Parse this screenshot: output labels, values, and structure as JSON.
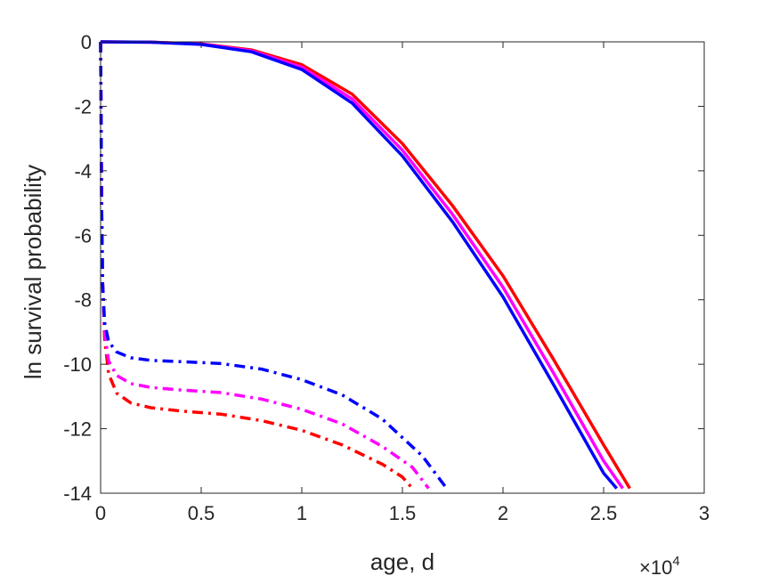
{
  "chart_data": {
    "type": "line",
    "xlabel": "age, d",
    "ylabel": "ln survival probability",
    "x_exponent_label": "×10",
    "x_exponent_power": "4",
    "x_scale": 10000,
    "xlim": [
      0,
      30000
    ],
    "ylim": [
      -14,
      0
    ],
    "xticks": [
      0,
      5000,
      10000,
      15000,
      20000,
      25000,
      30000
    ],
    "xtick_labels": [
      "0",
      "0.5",
      "1",
      "1.5",
      "2",
      "2.5",
      "3"
    ],
    "yticks": [
      0,
      -2,
      -4,
      -6,
      -8,
      -10,
      -12,
      -14
    ],
    "ytick_labels": [
      "0",
      "-2",
      "-4",
      "-6",
      "-8",
      "-10",
      "-12",
      "-14"
    ],
    "grid": false,
    "series": [
      {
        "color": "#ff0000",
        "style": "solid",
        "x": [
          0,
          2500,
          5000,
          7500,
          10000,
          12500,
          15000,
          17500,
          20000,
          22500,
          25000,
          26300
        ],
        "y": [
          0,
          -0.01,
          -0.06,
          -0.25,
          -0.71,
          -1.62,
          -3.16,
          -5.09,
          -7.26,
          -9.84,
          -12.5,
          -13.85
        ]
      },
      {
        "color": "#ff00ff",
        "style": "solid",
        "x": [
          0,
          2500,
          5000,
          7500,
          10000,
          12500,
          15000,
          17500,
          20000,
          22500,
          25000,
          25950
        ],
        "y": [
          0,
          -0.01,
          -0.07,
          -0.28,
          -0.79,
          -1.77,
          -3.36,
          -5.36,
          -7.61,
          -10.26,
          -13.0,
          -13.85
        ]
      },
      {
        "color": "#0000ff",
        "style": "solid",
        "x": [
          0,
          2500,
          5000,
          7500,
          10000,
          12500,
          15000,
          17500,
          20000,
          22500,
          25000,
          25650
        ],
        "y": [
          0,
          -0.01,
          -0.08,
          -0.31,
          -0.86,
          -1.9,
          -3.54,
          -5.59,
          -7.91,
          -10.62,
          -13.38,
          -13.85
        ]
      },
      {
        "color": "#ff0000",
        "style": "dashdot",
        "x": [
          0,
          20,
          50,
          100,
          200,
          400,
          800,
          1500,
          2500,
          4000,
          6000,
          8000,
          10000,
          12000,
          14000,
          15000,
          15500
        ],
        "y": [
          0,
          -2,
          -5,
          -7.5,
          -9.2,
          -10.3,
          -10.9,
          -11.2,
          -11.35,
          -11.45,
          -11.55,
          -11.75,
          -12.05,
          -12.5,
          -13.1,
          -13.5,
          -13.85
        ]
      },
      {
        "color": "#ff00ff",
        "style": "dashdot",
        "x": [
          0,
          20,
          50,
          100,
          200,
          400,
          800,
          1500,
          2500,
          4000,
          6000,
          8000,
          10000,
          12000,
          14000,
          15500,
          16300
        ],
        "y": [
          0,
          -2,
          -5,
          -7.5,
          -9,
          -9.9,
          -10.35,
          -10.6,
          -10.72,
          -10.8,
          -10.88,
          -11.08,
          -11.4,
          -11.85,
          -12.55,
          -13.2,
          -13.85
        ]
      },
      {
        "color": "#0000ff",
        "style": "dashdot",
        "x": [
          0,
          20,
          50,
          100,
          200,
          400,
          800,
          1500,
          2500,
          4000,
          6000,
          8000,
          10000,
          12000,
          14000,
          16000,
          17200
        ],
        "y": [
          0,
          -2,
          -5,
          -7.5,
          -8.7,
          -9.3,
          -9.62,
          -9.8,
          -9.88,
          -9.92,
          -9.98,
          -10.15,
          -10.48,
          -10.95,
          -11.7,
          -12.85,
          -13.85
        ]
      }
    ]
  }
}
